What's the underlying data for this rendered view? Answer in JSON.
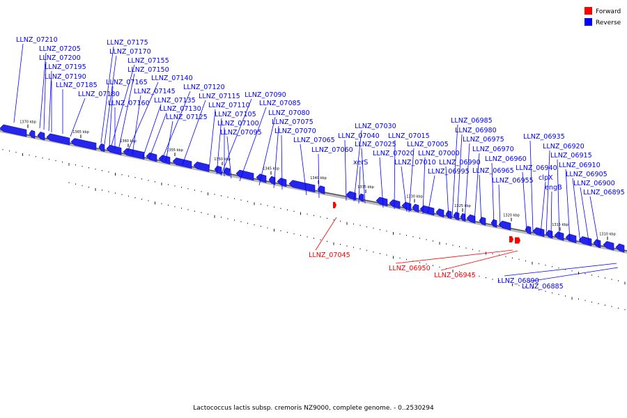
{
  "legend": {
    "forward_label": "Forward",
    "reverse_label": "Reverse",
    "forward_color": "#ff0000",
    "reverse_color": "#0000ff",
    "forward_fill": "#ff0000",
    "reverse_fill": "#2525ee"
  },
  "caption": "Lactococcus lactis subsp. cremoris NZ9000, complete genome. - 0..2530294",
  "ticks": [
    "1370 kbp",
    "1365 kbp",
    "1360 kbp",
    "1355 kbp",
    "1350 kbp",
    "1345 kbp",
    "1340 kbp",
    "1335 kbp",
    "1330 kbp",
    "1325 kbp",
    "1320 kbp",
    "1315 kbp",
    "1310 kbp"
  ],
  "labels": [
    {
      "name": "LLNZ_07210",
      "strand": "reverse"
    },
    {
      "name": "LLNZ_07205",
      "strand": "reverse"
    },
    {
      "name": "LLNZ_07200",
      "strand": "reverse"
    },
    {
      "name": "LLNZ_07195",
      "strand": "reverse"
    },
    {
      "name": "LLNZ_07190",
      "strand": "reverse"
    },
    {
      "name": "LLNZ_07185",
      "strand": "reverse"
    },
    {
      "name": "LLNZ_07180",
      "strand": "reverse"
    },
    {
      "name": "LLNZ_07175",
      "strand": "reverse"
    },
    {
      "name": "LLNZ_07170",
      "strand": "reverse"
    },
    {
      "name": "LLNZ_07165",
      "strand": "reverse"
    },
    {
      "name": "LLNZ_07160",
      "strand": "reverse"
    },
    {
      "name": "LLNZ_07155",
      "strand": "reverse"
    },
    {
      "name": "LLNZ_07150",
      "strand": "reverse"
    },
    {
      "name": "LLNZ_07145",
      "strand": "reverse"
    },
    {
      "name": "LLNZ_07140",
      "strand": "reverse"
    },
    {
      "name": "LLNZ_07135",
      "strand": "reverse"
    },
    {
      "name": "LLNZ_07130",
      "strand": "reverse"
    },
    {
      "name": "LLNZ_07125",
      "strand": "reverse"
    },
    {
      "name": "LLNZ_07120",
      "strand": "reverse"
    },
    {
      "name": "LLNZ_07115",
      "strand": "reverse"
    },
    {
      "name": "LLNZ_07110",
      "strand": "reverse"
    },
    {
      "name": "LLNZ_07105",
      "strand": "reverse"
    },
    {
      "name": "LLNZ_07100",
      "strand": "reverse"
    },
    {
      "name": "LLNZ_07095",
      "strand": "reverse"
    },
    {
      "name": "LLNZ_07090",
      "strand": "reverse"
    },
    {
      "name": "LLNZ_07085",
      "strand": "reverse"
    },
    {
      "name": "LLNZ_07080",
      "strand": "reverse"
    },
    {
      "name": "LLNZ_07075",
      "strand": "reverse"
    },
    {
      "name": "LLNZ_07070",
      "strand": "reverse"
    },
    {
      "name": "LLNZ_07065",
      "strand": "reverse"
    },
    {
      "name": "LLNZ_07060",
      "strand": "reverse"
    },
    {
      "name": "LLNZ_07045",
      "strand": "forward"
    },
    {
      "name": "LLNZ_07040",
      "strand": "reverse"
    },
    {
      "name": "LLNZ_07030",
      "strand": "reverse"
    },
    {
      "name": "xerS",
      "strand": "reverse"
    },
    {
      "name": "LLNZ_07025",
      "strand": "reverse"
    },
    {
      "name": "LLNZ_07020",
      "strand": "reverse"
    },
    {
      "name": "LLNZ_07015",
      "strand": "reverse"
    },
    {
      "name": "LLNZ_07010",
      "strand": "reverse"
    },
    {
      "name": "LLNZ_07005",
      "strand": "reverse"
    },
    {
      "name": "LLNZ_07000",
      "strand": "reverse"
    },
    {
      "name": "LLNZ_06995",
      "strand": "reverse"
    },
    {
      "name": "LLNZ_06990",
      "strand": "reverse"
    },
    {
      "name": "LLNZ_06985",
      "strand": "reverse"
    },
    {
      "name": "LLNZ_06980",
      "strand": "reverse"
    },
    {
      "name": "LLNZ_06975",
      "strand": "reverse"
    },
    {
      "name": "LLNZ_06970",
      "strand": "reverse"
    },
    {
      "name": "LLNZ_06965",
      "strand": "reverse"
    },
    {
      "name": "LLNZ_06960",
      "strand": "reverse"
    },
    {
      "name": "LLNZ_06955",
      "strand": "reverse"
    },
    {
      "name": "LLNZ_06950",
      "strand": "forward"
    },
    {
      "name": "LLNZ_06945",
      "strand": "forward"
    },
    {
      "name": "LLNZ_06940",
      "strand": "reverse"
    },
    {
      "name": "LLNZ_06935",
      "strand": "reverse"
    },
    {
      "name": "clpX",
      "strand": "reverse"
    },
    {
      "name": "engB",
      "strand": "reverse"
    },
    {
      "name": "LLNZ_06920",
      "strand": "reverse"
    },
    {
      "name": "LLNZ_06915",
      "strand": "reverse"
    },
    {
      "name": "LLNZ_06910",
      "strand": "reverse"
    },
    {
      "name": "LLNZ_06905",
      "strand": "reverse"
    },
    {
      "name": "LLNZ_06900",
      "strand": "reverse"
    },
    {
      "name": "LLNZ_06895",
      "strand": "reverse"
    },
    {
      "name": "LLNZ_06890",
      "strand": "reverse"
    },
    {
      "name": "LLNZ_06885",
      "strand": "reverse"
    }
  ]
}
